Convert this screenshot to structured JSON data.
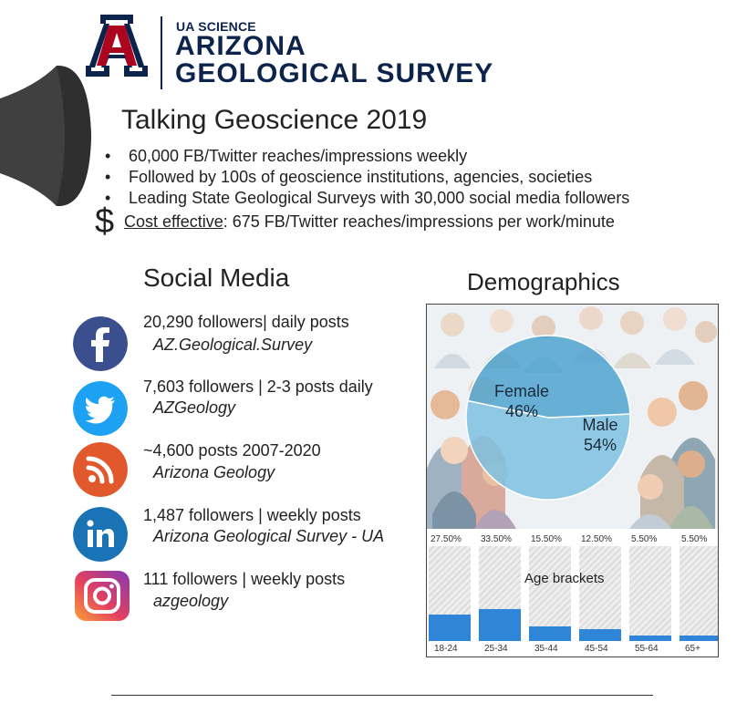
{
  "header": {
    "org_sub": "UA SCIENCE",
    "org_line1": "ARIZONA",
    "org_line2": "GEOLOGICAL SURVEY",
    "logo_icon": "university-of-arizona-block-a-logo",
    "brand_navy": "#0c234b",
    "brand_red": "#ab0520"
  },
  "title": "Talking Geoscience 2019",
  "bullets": [
    "60,000 FB/Twitter reaches/impressions weekly",
    "Followed by 100s of geoscience institutions, agencies, societies",
    "Leading State Geological Surveys with 30,000 social media followers"
  ],
  "bullet_char": "•",
  "cost": {
    "symbol": "$",
    "label": "Cost effective",
    "rest": ": 675 FB/Twitter reaches/impressions per work/minute"
  },
  "social_media": {
    "heading": "Social Media",
    "items": [
      {
        "icon": "facebook-icon",
        "color": "#3b4e8e",
        "stats": "20,290 followers| daily posts",
        "handle": "AZ.Geological.Survey"
      },
      {
        "icon": "twitter-icon",
        "color": "#1da1f2",
        "stats": "7,603 followers | 2-3 posts daily",
        "handle": "AZGeology"
      },
      {
        "icon": "rss-icon",
        "color": "#e2582d",
        "stats": "~4,600 posts 2007-2020",
        "handle": "Arizona Geology"
      },
      {
        "icon": "linkedin-icon",
        "color": "#1a73b5",
        "stats": "1,487 followers | weekly posts",
        "handle": "Arizona Geological Survey - UA"
      },
      {
        "icon": "instagram-icon",
        "color": "#d6249f",
        "stats": "111 followers | weekly posts",
        "handle": "azgeology"
      }
    ]
  },
  "demographics": {
    "heading": "Demographics",
    "age_title": "Age brackets",
    "bar_color": "#2f86d8"
  },
  "chart_data": [
    {
      "type": "pie",
      "categories": [
        "Female",
        "Male"
      ],
      "values": [
        46,
        54
      ],
      "labels": [
        "46%",
        "54%"
      ]
    },
    {
      "type": "bar",
      "title": "Age brackets",
      "categories": [
        "18-24",
        "25-34",
        "35-44",
        "45-54",
        "55-64",
        "65+"
      ],
      "values": [
        27.5,
        33.5,
        15.5,
        12.5,
        5.5,
        5.5
      ],
      "value_labels": [
        "27.50%",
        "33.50%",
        "15.50%",
        "12.50%",
        "5.50%",
        "5.50%"
      ],
      "ylim": [
        0,
        100
      ]
    }
  ]
}
